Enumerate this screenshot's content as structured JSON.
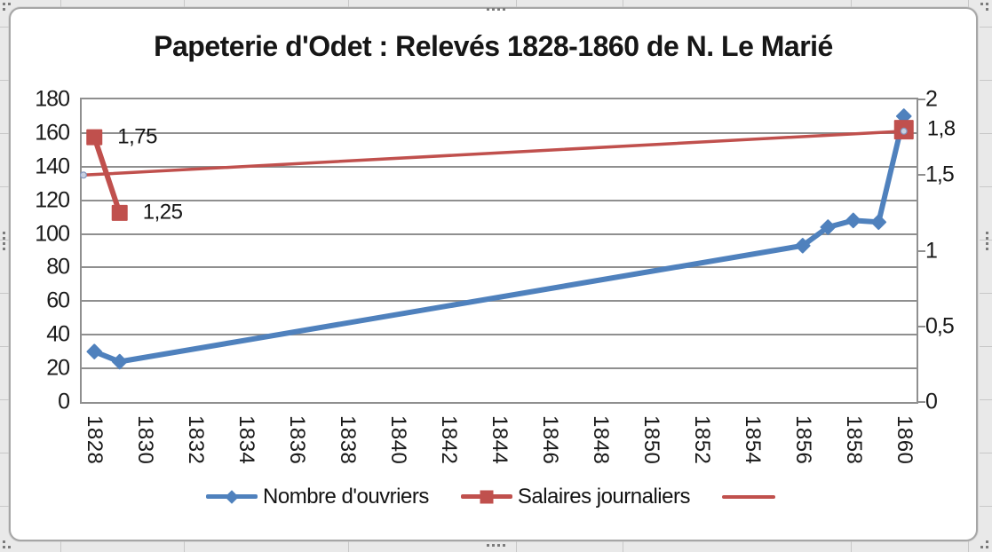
{
  "colors": {
    "workers_series": "#4F81BD",
    "salary_series": "#C0504D",
    "trendline": "#C0504D",
    "grid": "#8F8F8F",
    "sheet_bg": "#E9E9E9",
    "sheet_grid": "#C8C8C8",
    "trend_dot_fill": "#C9D1E1",
    "trend_dot_stroke": "#8396BE"
  },
  "chart_data": {
    "type": "line",
    "title": "Papeterie d'Odet : Relevés 1828-1860 de N. Le Marié",
    "grid": "horizontal",
    "legend_position": "bottom",
    "x_axis": {
      "min": 1828,
      "max": 1860,
      "tick_step": 2,
      "rotation": "vertical",
      "tick_labels": [
        "1828",
        "1830",
        "1832",
        "1834",
        "1836",
        "1838",
        "1840",
        "1842",
        "1844",
        "1846",
        "1848",
        "1850",
        "1852",
        "1854",
        "1856",
        "1858",
        "1860"
      ]
    },
    "y_left": {
      "min": 0,
      "max": 180,
      "step": 20,
      "tick_labels": [
        "180",
        "160",
        "140",
        "120",
        "100",
        "80",
        "60",
        "40",
        "20",
        "0"
      ]
    },
    "y_right": {
      "min": 0,
      "max": 2,
      "step": 0.5,
      "tick_labels": [
        "2",
        "1,5",
        "1",
        "0,5",
        "0"
      ]
    },
    "series": [
      {
        "name": "Nombre d'ouvriers",
        "axis": "left",
        "color": "#4F81BD",
        "marker": "diamond",
        "line_width": 6,
        "points": [
          {
            "x": 1828,
            "y": 30
          },
          {
            "x": 1829,
            "y": 24
          },
          {
            "x": 1856,
            "y": 93
          },
          {
            "x": 1857,
            "y": 104
          },
          {
            "x": 1858,
            "y": 108
          },
          {
            "x": 1859,
            "y": 107
          },
          {
            "x": 1860,
            "y": 170
          }
        ]
      },
      {
        "name": "Salaires journaliers",
        "axis": "right",
        "color": "#C0504D",
        "marker": "square",
        "line_width": 6,
        "points": [
          {
            "x": 1828,
            "y": 1.75,
            "label": "1,75"
          },
          {
            "x": 1829,
            "y": 1.25,
            "label": "1,25"
          },
          {
            "x": 1860,
            "y": 1.8,
            "label": "1,8",
            "gap": true,
            "size": 22
          }
        ]
      },
      {
        "name": "",
        "axis": "right",
        "color": "#C0504D",
        "marker": "dot",
        "line_width": 3.5,
        "trendline": true,
        "extend_to_left_edge": true,
        "points": [
          {
            "x": 1828,
            "y": 1.5
          },
          {
            "x": 1860,
            "y": 1.79
          }
        ]
      }
    ]
  }
}
